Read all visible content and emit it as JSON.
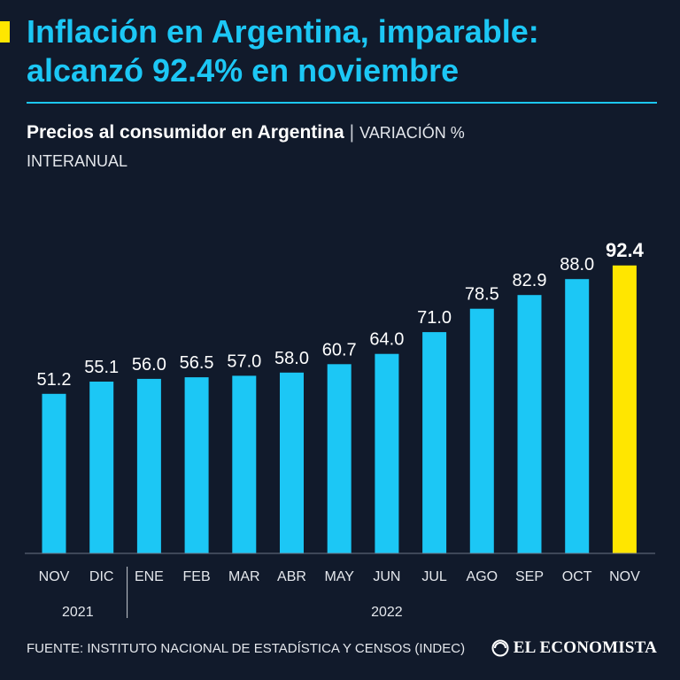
{
  "headline_line1": "Inflación en Argentina, imparable:",
  "headline_line2": "alcanzó 92.4% en noviembre",
  "subtitle_bold": "Precios al consumidor en Argentina",
  "subtitle_sep": "|",
  "subtitle_light_1": "VARIACIÓN %",
  "subtitle_light_2": "INTERANUAL",
  "source": "FUENTE: INSTITUTO NACIONAL DE ESTADÍSTICA Y CENSOS (INDEC)",
  "brand": {
    "name": "EL ECONOMISTA",
    "icon": "el-economista-logo-icon"
  },
  "colors": {
    "background": "#111a2b",
    "bar": "#1cc7f5",
    "highlight": "#ffe600",
    "title": "#1cc7f5",
    "text": "#ffffff"
  },
  "chart_data": {
    "type": "bar",
    "title": "Precios al consumidor en Argentina",
    "ylabel": "Variación % interanual",
    "categories": [
      "NOV",
      "DIC",
      "ENE",
      "FEB",
      "MAR",
      "ABR",
      "MAY",
      "JUN",
      "JUL",
      "AGO",
      "SEP",
      "OCT",
      "NOV"
    ],
    "values": [
      51.2,
      55.1,
      56.0,
      56.5,
      57.0,
      58.0,
      60.7,
      64.0,
      71.0,
      78.5,
      82.9,
      88.0,
      92.4
    ],
    "value_labels": [
      "51.2",
      "55.1",
      "56.0",
      "56.5",
      "57.0",
      "58.0",
      "60.7",
      "64.0",
      "71.0",
      "78.5",
      "82.9",
      "88.0",
      "92.4"
    ],
    "highlight_index": 12,
    "years": [
      {
        "label": "2021",
        "start": 0,
        "end": 1
      },
      {
        "label": "2022",
        "start": 2,
        "end": 12
      }
    ],
    "ylim": [
      0,
      100
    ],
    "grid": false
  }
}
